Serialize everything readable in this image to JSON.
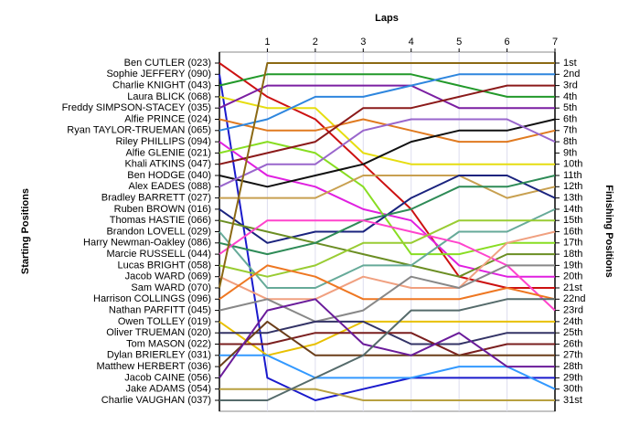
{
  "chart_data": {
    "type": "line",
    "x_label": "Laps",
    "y_label": "Starting Positions",
    "y2_label": "Finishing Positions",
    "x": [
      0,
      1,
      2,
      3,
      4,
      5,
      6,
      7
    ],
    "xlim": [
      0,
      7
    ],
    "xticks": [
      1,
      2,
      3,
      4,
      5,
      6,
      7
    ],
    "ylim": [
      1,
      31
    ],
    "y_inverted": true,
    "grid": true,
    "y2ticks": [
      {
        "value": 1,
        "label": "1st"
      },
      {
        "value": 2,
        "label": "2nd"
      },
      {
        "value": 3,
        "label": "3rd"
      },
      {
        "value": 4,
        "label": "4th"
      },
      {
        "value": 5,
        "label": "5th"
      },
      {
        "value": 6,
        "label": "6th"
      },
      {
        "value": 7,
        "label": "7th"
      },
      {
        "value": 8,
        "label": "8th"
      },
      {
        "value": 9,
        "label": "9th"
      },
      {
        "value": 10,
        "label": "10th"
      },
      {
        "value": 11,
        "label": "11th"
      },
      {
        "value": 12,
        "label": "12th"
      },
      {
        "value": 13,
        "label": "13th"
      },
      {
        "value": 14,
        "label": "14th"
      },
      {
        "value": 15,
        "label": "15th"
      },
      {
        "value": 16,
        "label": "16th"
      },
      {
        "value": 17,
        "label": "17th"
      },
      {
        "value": 18,
        "label": "18th"
      },
      {
        "value": 19,
        "label": "19th"
      },
      {
        "value": 20,
        "label": "20th"
      },
      {
        "value": 21,
        "label": "21st"
      },
      {
        "value": 22,
        "label": "22nd"
      },
      {
        "value": 23,
        "label": "23rd"
      },
      {
        "value": 24,
        "label": "24th"
      },
      {
        "value": 25,
        "label": "25th"
      },
      {
        "value": 26,
        "label": "26th"
      },
      {
        "value": 27,
        "label": "27th"
      },
      {
        "value": 28,
        "label": "28th"
      },
      {
        "value": 29,
        "label": "29th"
      },
      {
        "value": 30,
        "label": "30th"
      },
      {
        "value": 31,
        "label": "31st"
      }
    ],
    "series": [
      {
        "name": "Ben CUTLER (023)",
        "color": "#cc1111",
        "values": [
          1,
          4,
          6,
          10,
          14,
          20,
          21,
          21
        ]
      },
      {
        "name": "Sophie JEFFERY (090)",
        "color": "#1a1acc",
        "values": [
          2,
          29,
          31,
          30,
          29,
          29,
          29,
          29
        ]
      },
      {
        "name": "Charlie KNIGHT (043)",
        "color": "#22992a",
        "values": [
          3,
          2,
          2,
          2,
          2,
          3,
          4,
          4
        ]
      },
      {
        "name": "Laura BLICK (068)",
        "color": "#e6dd10",
        "values": [
          4,
          5,
          5,
          9,
          10,
          10,
          10,
          10
        ]
      },
      {
        "name": "Freddy SIMPSON-STACEY (035)",
        "color": "#7b1fa2",
        "values": [
          5,
          3,
          3,
          3,
          3,
          5,
          5,
          5
        ]
      },
      {
        "name": "Alfie PRINCE (024)",
        "color": "#e07a20",
        "values": [
          6,
          7,
          7,
          6,
          7,
          8,
          8,
          7
        ]
      },
      {
        "name": "Ryan TAYLOR-TRUEMAN (065)",
        "color": "#2e86de",
        "values": [
          7,
          6,
          4,
          4,
          3,
          2,
          2,
          2
        ]
      },
      {
        "name": "Riley PHILLIPS (094)",
        "color": "#e020e0",
        "values": [
          8,
          11,
          12,
          14,
          15,
          19,
          20,
          20
        ]
      },
      {
        "name": "Alfie GLENIE (021)",
        "color": "#88dd22",
        "values": [
          9,
          8,
          9,
          12,
          18,
          18,
          17,
          17
        ]
      },
      {
        "name": "Khali ATKINS (047)",
        "color": "#8b1a1a",
        "values": [
          10,
          9,
          8,
          5,
          5,
          4,
          3,
          3
        ]
      },
      {
        "name": "Ben HODGE (040)",
        "color": "#111111",
        "values": [
          11,
          12,
          11,
          10,
          8,
          7,
          7,
          6
        ]
      },
      {
        "name": "Alex EADES (088)",
        "color": "#9966cc",
        "values": [
          12,
          10,
          10,
          7,
          6,
          6,
          6,
          8
        ]
      },
      {
        "name": "Bradley BARRETT (027)",
        "color": "#c8a050",
        "values": [
          13,
          13,
          13,
          11,
          11,
          11,
          13,
          12
        ]
      },
      {
        "name": "Ruben BROWN (016)",
        "color": "#1a237e",
        "values": [
          14,
          17,
          16,
          16,
          13,
          11,
          11,
          13
        ]
      },
      {
        "name": "Thomas HASTIE (066)",
        "color": "#6b8e23",
        "values": [
          15,
          16,
          17,
          18,
          19,
          20,
          18,
          18
        ]
      },
      {
        "name": "Brandon LOVELL (029)",
        "color": "#66aa99",
        "values": [
          16,
          21,
          21,
          19,
          19,
          16,
          16,
          14
        ]
      },
      {
        "name": "Harry Newman-Oakley (086)",
        "color": "#2e8b57",
        "values": [
          17,
          18,
          17,
          15,
          14,
          12,
          12,
          11
        ]
      },
      {
        "name": "Marcie RUSSELL (044)",
        "color": "#ff44cc",
        "values": [
          18,
          15,
          15,
          15,
          16,
          17,
          19,
          23
        ]
      },
      {
        "name": "Lucas BRIGHT (058)",
        "color": "#99cc33",
        "values": [
          19,
          20,
          19,
          17,
          17,
          15,
          15,
          15
        ]
      },
      {
        "name": "Jacob WARD (069)",
        "color": "#f0a080",
        "values": [
          20,
          22,
          22,
          20,
          21,
          21,
          17,
          16
        ]
      },
      {
        "name": "Sam WARD (070)",
        "color": "#8b6914",
        "values": [
          21,
          1,
          1,
          1,
          1,
          1,
          1,
          1
        ]
      },
      {
        "name": "Harrison COLLINGS (096)",
        "color": "#ee7722",
        "values": [
          22,
          19,
          20,
          22,
          22,
          22,
          21,
          22
        ]
      },
      {
        "name": "Nathan PARFITT (045)",
        "color": "#888888",
        "values": [
          23,
          22,
          24,
          23,
          20,
          21,
          19,
          19
        ]
      },
      {
        "name": "Owen TOLLEY (019)",
        "color": "#e8c000",
        "values": [
          24,
          27,
          26,
          24,
          24,
          24,
          24,
          24
        ]
      },
      {
        "name": "Oliver TRUEMAN (020)",
        "color": "#333366",
        "values": [
          25,
          25,
          24,
          24,
          26,
          26,
          25,
          25
        ]
      },
      {
        "name": "Tom MASON (022)",
        "color": "#7a1f1f",
        "values": [
          26,
          26,
          25,
          25,
          25,
          27,
          26,
          26
        ]
      },
      {
        "name": "Dylan BRIERLEY (031)",
        "color": "#3399ff",
        "values": [
          27,
          27,
          29,
          29,
          29,
          28,
          28,
          30
        ]
      },
      {
        "name": "Matthew HERBERT (036)",
        "color": "#6b3e1a",
        "values": [
          28,
          24,
          27,
          27,
          27,
          27,
          27,
          27
        ]
      },
      {
        "name": "Jacob CAINE (056)",
        "color": "#6a1b9a",
        "values": [
          29,
          23,
          22,
          26,
          27,
          25,
          28,
          28
        ]
      },
      {
        "name": "Jake ADAMS (054)",
        "color": "#b8a040",
        "values": [
          30,
          30,
          30,
          31,
          31,
          31,
          31,
          31
        ]
      },
      {
        "name": "Charlie VAUGHAN (037)",
        "color": "#556b6b",
        "values": [
          31,
          31,
          29,
          27,
          23,
          23,
          22,
          22
        ]
      }
    ]
  }
}
